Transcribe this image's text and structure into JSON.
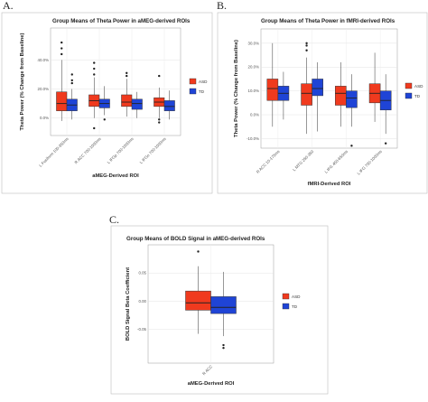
{
  "panels": [
    {
      "letter": "A.",
      "chart_data": {
        "type": "box",
        "title": "Group Means of Theta Power in aMEG-derived ROIs",
        "xlabel": "aMEG-Derived ROI",
        "ylabel": "Theta Power (% Change from Baseline)",
        "ylim": [
          -12,
          62
        ],
        "yticks": [
          "0.0%",
          "20.0%",
          "40.0%"
        ],
        "ytick_values": [
          0,
          20,
          40
        ],
        "categories": [
          "L Fusiform 100-350ms",
          "R ACC 700-1000ms",
          "L IFGp 700-1000ms",
          "L IFGo 700-1000ms"
        ],
        "legend": {
          "placement": "right",
          "entries": [
            "ASD",
            "TD"
          ]
        },
        "series": [
          {
            "name": "ASD",
            "color": "#f03a1e",
            "boxes": [
              {
                "whisker_low": -2,
                "q1": 5,
                "median": 10,
                "q3": 18,
                "whisker_high": 40,
                "outliers": [
                  44,
                  48,
                  52
                ]
              },
              {
                "whisker_low": 0,
                "q1": 8,
                "median": 12,
                "q3": 16,
                "whisker_high": 28,
                "outliers": [
                  -7,
                  30,
                  34,
                  38
                ]
              },
              {
                "whisker_low": 1,
                "q1": 8,
                "median": 11,
                "q3": 16,
                "whisker_high": 27,
                "outliers": [
                  29,
                  31
                ]
              },
              {
                "whisker_low": 0,
                "q1": 8,
                "median": 11,
                "q3": 14,
                "whisker_high": 21,
                "outliers": [
                  -1,
                  -3,
                  29
                ]
              }
            ]
          },
          {
            "name": "TD",
            "color": "#1f44d6",
            "boxes": [
              {
                "whisker_low": -1,
                "q1": 5,
                "median": 9,
                "q3": 13,
                "whisker_high": 20,
                "outliers": [
                  24,
                  26,
                  30
                ]
              },
              {
                "whisker_low": 2,
                "q1": 7,
                "median": 10,
                "q3": 13,
                "whisker_high": 22,
                "outliers": [
                  -1
                ]
              },
              {
                "whisker_low": 0,
                "q1": 6,
                "median": 10,
                "q3": 13,
                "whisker_high": 18,
                "outliers": []
              },
              {
                "whisker_low": -1,
                "q1": 5,
                "median": 8,
                "q3": 12,
                "whisker_high": 19,
                "outliers": []
              }
            ]
          }
        ]
      }
    },
    {
      "letter": "B.",
      "chart_data": {
        "type": "box",
        "title": "Group Means of Theta Power in fMRI-derived ROIs",
        "xlabel": "fMRI-Derived ROI",
        "ylabel": "Theta Power (% Change from Baseline)",
        "ylim": [
          -14,
          36
        ],
        "yticks": [
          "-10.0%",
          "0.0%",
          "10.0%",
          "20.0%",
          "30.0%"
        ],
        "ytick_values": [
          -10,
          0,
          10,
          20,
          30
        ],
        "categories": [
          "R ACC 10-175ms",
          "L MTG 250-350",
          "L IFG 450-650ms",
          "L IFG 700-1000ms"
        ],
        "legend": {
          "placement": "right",
          "entries": [
            "ASD",
            "TD"
          ]
        },
        "series": [
          {
            "name": "ASD",
            "color": "#f03a1e",
            "boxes": [
              {
                "whisker_low": -5,
                "q1": 6,
                "median": 11,
                "q3": 15,
                "whisker_high": 30,
                "outliers": []
              },
              {
                "whisker_low": -8,
                "q1": 4,
                "median": 9,
                "q3": 13,
                "whisker_high": 24,
                "outliers": [
                  27,
                  29,
                  30
                ]
              },
              {
                "whisker_low": -5,
                "q1": 4,
                "median": 9,
                "q3": 12,
                "whisker_high": 22,
                "outliers": []
              },
              {
                "whisker_low": -3,
                "q1": 5,
                "median": 9,
                "q3": 13,
                "whisker_high": 26,
                "outliers": []
              }
            ]
          },
          {
            "name": "TD",
            "color": "#1f44d6",
            "boxes": [
              {
                "whisker_low": -2,
                "q1": 6,
                "median": 9,
                "q3": 12,
                "whisker_high": 18,
                "outliers": []
              },
              {
                "whisker_low": -7,
                "q1": 8,
                "median": 11,
                "q3": 15,
                "whisker_high": 22,
                "outliers": []
              },
              {
                "whisker_low": -5,
                "q1": 3,
                "median": 7,
                "q3": 10,
                "whisker_high": 17,
                "outliers": [
                  -13
                ]
              },
              {
                "whisker_low": -8,
                "q1": 2,
                "median": 6,
                "q3": 10,
                "whisker_high": 17,
                "outliers": [
                  -12
                ]
              }
            ]
          }
        ]
      }
    },
    {
      "letter": "C.",
      "chart_data": {
        "type": "box",
        "title": "Group Means of BOLD Signal in aMEG-derived ROIs",
        "xlabel": "aMEG-Derived ROI",
        "ylabel": "BOLD Signal Beta Coefficient",
        "ylim": [
          -0.11,
          0.1
        ],
        "yticks": [
          "-0.05",
          "0.00",
          "0.05"
        ],
        "ytick_values": [
          -0.05,
          0,
          0.05
        ],
        "categories": [
          "R ACC"
        ],
        "legend": {
          "placement": "right",
          "entries": [
            "ASD",
            "TD"
          ]
        },
        "series": [
          {
            "name": "ASD",
            "color": "#f03a1e",
            "boxes": [
              {
                "whisker_low": -0.058,
                "q1": -0.016,
                "median": -0.003,
                "q3": 0.018,
                "whisker_high": 0.062,
                "outliers": [
                  0.088
                ]
              }
            ]
          },
          {
            "name": "TD",
            "color": "#1f44d6",
            "boxes": [
              {
                "whisker_low": -0.062,
                "q1": -0.022,
                "median": -0.011,
                "q3": 0.008,
                "whisker_high": 0.052,
                "outliers": [
                  -0.078,
                  -0.083
                ]
              }
            ]
          }
        ]
      }
    }
  ]
}
